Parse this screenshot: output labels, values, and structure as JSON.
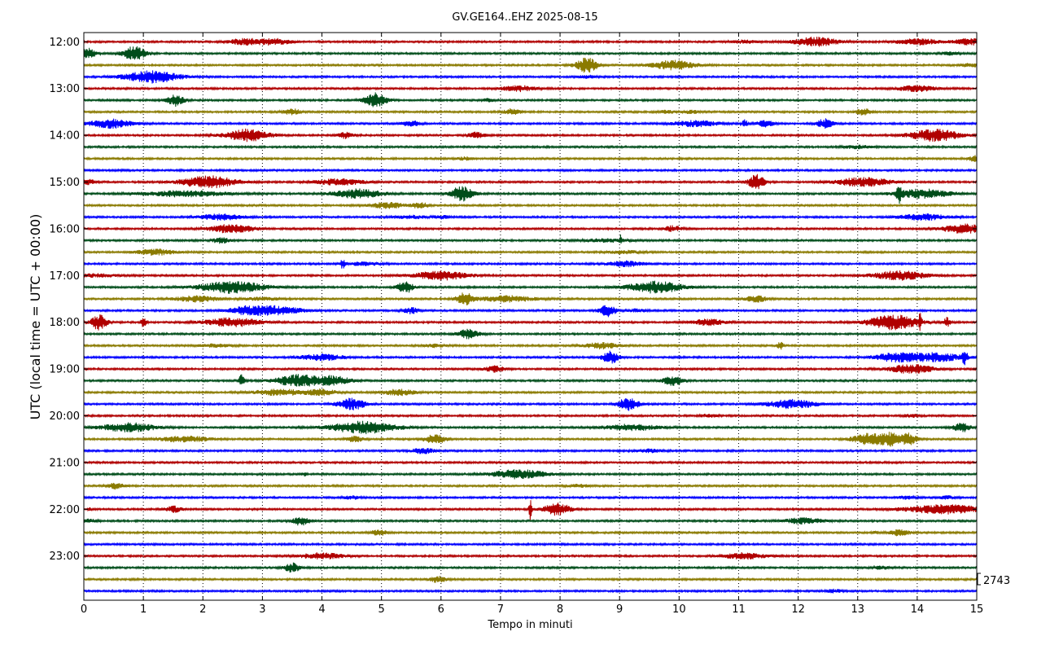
{
  "chart_data": {
    "type": "line",
    "title": "GV.GE164..EHZ 2025-08-15",
    "xlabel": "Tempo in minuti",
    "ylabel": "UTC (local time = UTC + 00:00)",
    "xlim": [
      0,
      15
    ],
    "x_ticks": [
      "0",
      "1",
      "2",
      "3",
      "4",
      "5",
      "6",
      "7",
      "8",
      "9",
      "10",
      "11",
      "12",
      "13",
      "14",
      "15"
    ],
    "y_tick_labels": [
      "12:00",
      "13:00",
      "14:00",
      "15:00",
      "16:00",
      "17:00",
      "18:00",
      "19:00",
      "20:00",
      "21:00",
      "22:00",
      "23:00"
    ],
    "trace_count": 48,
    "trace_minutes": 15,
    "trace_start": "12:00",
    "trace_colors": [
      "#b00000",
      "#004d1a",
      "#8a7a00",
      "#0000ff"
    ],
    "grid": "vertical dotted at each minute",
    "scale_label": "2743",
    "events": [
      [
        0,
        2.7,
        2,
        0.6
      ],
      [
        0,
        3.2,
        2,
        0.6
      ],
      [
        0,
        11.1,
        1,
        0.5
      ],
      [
        0,
        12.3,
        3,
        0.8
      ],
      [
        0,
        14.0,
        2,
        0.8
      ],
      [
        0,
        14.9,
        2,
        0.6
      ],
      [
        1,
        0.05,
        4,
        0.3
      ],
      [
        1,
        0.85,
        5,
        0.4
      ],
      [
        1,
        14.55,
        1,
        0.3
      ],
      [
        2,
        8.45,
        5,
        0.4
      ],
      [
        2,
        9.9,
        3,
        0.8
      ],
      [
        2,
        14.9,
        1,
        0.4
      ],
      [
        3,
        1.15,
        4,
        1.0
      ],
      [
        3,
        8.45,
        1,
        0.3
      ],
      [
        4,
        7.3,
        2,
        0.6
      ],
      [
        4,
        14.0,
        2,
        0.7
      ],
      [
        5,
        1.55,
        4,
        0.3
      ],
      [
        5,
        4.9,
        5,
        0.4
      ],
      [
        5,
        6.8,
        1,
        0.2
      ],
      [
        6,
        3.5,
        2,
        0.3
      ],
      [
        6,
        7.2,
        2,
        0.3
      ],
      [
        6,
        9.8,
        1,
        0.3
      ],
      [
        6,
        10.2,
        1,
        0.3
      ],
      [
        6,
        13.1,
        2,
        0.3
      ],
      [
        7,
        0.45,
        3,
        0.8
      ],
      [
        7,
        5.5,
        2,
        0.3
      ],
      [
        7,
        10.3,
        2,
        0.8
      ],
      [
        7,
        11.1,
        3,
        0.1
      ],
      [
        7,
        11.45,
        2,
        0.3
      ],
      [
        7,
        12.45,
        3,
        0.3
      ],
      [
        8,
        2.75,
        4,
        0.8
      ],
      [
        8,
        4.4,
        2,
        0.3
      ],
      [
        8,
        6.6,
        2,
        0.3
      ],
      [
        8,
        14.3,
        4,
        0.9
      ],
      [
        9,
        13.0,
        1,
        0.5
      ],
      [
        10,
        6.4,
        1,
        0.3
      ],
      [
        10,
        15.0,
        2,
        0.3
      ],
      [
        12,
        0.05,
        2,
        0.3
      ],
      [
        12,
        2.1,
        4,
        1.0
      ],
      [
        12,
        4.3,
        2,
        0.9
      ],
      [
        12,
        11.3,
        5,
        0.3
      ],
      [
        12,
        13.1,
        3,
        1.0
      ],
      [
        13,
        1.7,
        2,
        1.5
      ],
      [
        13,
        4.6,
        3,
        0.9
      ],
      [
        13,
        6.35,
        5,
        0.4
      ],
      [
        13,
        13.7,
        5,
        0.1
      ],
      [
        13,
        14.1,
        3,
        1.0
      ],
      [
        14,
        5.1,
        2,
        0.6
      ],
      [
        14,
        5.65,
        2,
        0.3
      ],
      [
        15,
        2.3,
        2,
        0.8
      ],
      [
        15,
        5.5,
        1,
        0.6
      ],
      [
        15,
        6.0,
        1,
        0.3
      ],
      [
        15,
        14.1,
        2,
        0.9
      ],
      [
        16,
        2.5,
        3,
        0.8
      ],
      [
        16,
        9.9,
        2,
        0.3
      ],
      [
        16,
        14.8,
        3,
        0.8
      ],
      [
        17,
        2.3,
        2,
        0.3
      ],
      [
        17,
        8.8,
        1,
        0.9
      ],
      [
        17,
        9.02,
        3,
        0.05
      ],
      [
        18,
        1.2,
        2,
        0.7
      ],
      [
        18,
        9.1,
        1,
        0.6
      ],
      [
        19,
        4.35,
        3,
        0.1
      ],
      [
        19,
        4.7,
        1,
        0.6
      ],
      [
        19,
        9.1,
        2,
        0.6
      ],
      [
        20,
        0.2,
        1,
        0.8
      ],
      [
        20,
        6.0,
        3,
        1.0
      ],
      [
        20,
        13.7,
        3,
        1.0
      ],
      [
        21,
        2.5,
        4,
        1.2
      ],
      [
        21,
        5.4,
        4,
        0.3
      ],
      [
        21,
        9.6,
        4,
        1.0
      ],
      [
        22,
        1.9,
        2,
        0.8
      ],
      [
        22,
        3.0,
        1,
        0.6
      ],
      [
        22,
        6.4,
        4,
        0.3
      ],
      [
        22,
        7.1,
        2,
        1.0
      ],
      [
        22,
        11.3,
        2,
        0.4
      ],
      [
        23,
        2.7,
        2,
        0.6
      ],
      [
        23,
        3.2,
        3,
        1.0
      ],
      [
        23,
        5.5,
        2,
        0.3
      ],
      [
        23,
        8.8,
        4,
        0.3
      ],
      [
        23,
        9.3,
        1,
        0.3
      ],
      [
        24,
        0.25,
        5,
        0.3
      ],
      [
        24,
        1.0,
        3,
        0.1
      ],
      [
        24,
        2.5,
        3,
        1.0
      ],
      [
        24,
        10.5,
        2,
        0.6
      ],
      [
        24,
        13.6,
        5,
        0.9
      ],
      [
        24,
        14.05,
        5,
        0.05
      ],
      [
        24,
        14.5,
        4,
        0.1
      ],
      [
        25,
        6.45,
        3,
        0.4
      ],
      [
        26,
        2.2,
        1,
        0.6
      ],
      [
        26,
        5.9,
        1,
        0.4
      ],
      [
        26,
        8.7,
        2,
        0.6
      ],
      [
        26,
        11.7,
        3,
        0.1
      ],
      [
        27,
        4.0,
        2,
        0.8
      ],
      [
        27,
        8.85,
        4,
        0.3
      ],
      [
        27,
        13.6,
        3,
        0.7
      ],
      [
        27,
        14.3,
        3,
        1.0
      ],
      [
        27,
        14.8,
        4,
        0.1
      ],
      [
        28,
        6.9,
        2,
        0.4
      ],
      [
        28,
        13.9,
        3,
        0.8
      ],
      [
        29,
        2.65,
        4,
        0.1
      ],
      [
        29,
        3.6,
        4,
        0.8
      ],
      [
        29,
        4.2,
        3,
        0.6
      ],
      [
        29,
        9.9,
        3,
        0.4
      ],
      [
        30,
        3.3,
        2,
        1.0
      ],
      [
        30,
        4.0,
        2,
        0.5
      ],
      [
        30,
        5.3,
        2,
        0.6
      ],
      [
        31,
        4.5,
        4,
        0.5
      ],
      [
        31,
        9.15,
        4,
        0.4
      ],
      [
        31,
        11.9,
        3,
        0.9
      ],
      [
        32,
        10.5,
        1,
        0.3
      ],
      [
        32,
        13.9,
        1,
        0.3
      ],
      [
        33,
        0.75,
        3,
        1.0
      ],
      [
        33,
        4.7,
        4,
        1.2
      ],
      [
        33,
        9.2,
        2,
        1.0
      ],
      [
        33,
        14.75,
        3,
        0.3
      ],
      [
        34,
        1.7,
        2,
        0.9
      ],
      [
        34,
        4.55,
        2,
        0.3
      ],
      [
        34,
        5.9,
        3,
        0.4
      ],
      [
        34,
        13.2,
        4,
        0.6
      ],
      [
        34,
        13.55,
        4,
        0.3
      ],
      [
        34,
        13.85,
        4,
        0.3
      ],
      [
        35,
        5.7,
        2,
        0.4
      ],
      [
        35,
        9.5,
        1,
        0.5
      ],
      [
        37,
        3.7,
        1,
        0.1
      ],
      [
        37,
        7.3,
        3,
        1.0
      ],
      [
        38,
        0.55,
        2,
        0.3
      ],
      [
        38,
        8.3,
        1,
        0.4
      ],
      [
        39,
        4.5,
        1,
        0.3
      ],
      [
        39,
        13.8,
        1,
        0.3
      ],
      [
        39,
        14.5,
        1,
        0.3
      ],
      [
        40,
        0.1,
        1,
        0.05
      ],
      [
        40,
        1.5,
        2,
        0.3
      ],
      [
        40,
        7.5,
        8,
        0.05
      ],
      [
        40,
        7.95,
        4,
        0.5
      ],
      [
        40,
        14.5,
        3,
        1.5
      ],
      [
        41,
        0.1,
        1,
        0.3
      ],
      [
        41,
        3.65,
        3,
        0.3
      ],
      [
        41,
        11.25,
        1,
        0.1
      ],
      [
        41,
        12.1,
        2,
        0.7
      ],
      [
        42,
        4.95,
        2,
        0.3
      ],
      [
        42,
        13.3,
        1,
        0.1
      ],
      [
        42,
        13.7,
        2,
        0.4
      ],
      [
        44,
        4.0,
        2,
        0.8
      ],
      [
        44,
        11.1,
        2,
        0.8
      ],
      [
        45,
        3.5,
        3,
        0.3
      ],
      [
        45,
        13.4,
        1,
        0.3
      ],
      [
        46,
        5.95,
        2,
        0.3
      ],
      [
        47,
        12.6,
        1,
        0.3
      ]
    ]
  }
}
